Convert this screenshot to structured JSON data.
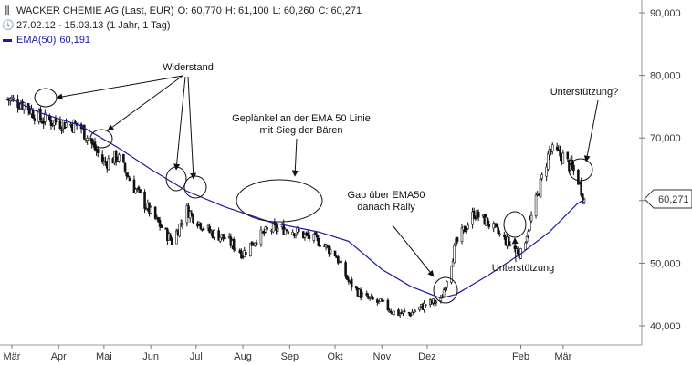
{
  "legend": {
    "instrument": "WACKER CHEMIE AG (Last, EUR)",
    "open": "O: 60,770",
    "high": "H: 61,100",
    "low": "L: 60,260",
    "close": "C: 60,271",
    "period": "27.02.12 - 15.03.13 (1 Jahr, 1 Tag)",
    "ema_label": "EMA(50)",
    "ema_value": "60,191"
  },
  "colors": {
    "ema": "#1a1aa6",
    "candle": "#111111",
    "axis": "#999999"
  },
  "chart_data": {
    "type": "line",
    "ylim": [
      38000,
      91000
    ],
    "yticks": [
      "40,000",
      "50,000",
      "60,000",
      "70,000",
      "80,000",
      "90,000"
    ],
    "xticks": [
      "Mär",
      "Apr",
      "Mai",
      "Jun",
      "Jul",
      "Aug",
      "Sep",
      "Okt",
      "Nov",
      "Dez",
      "Feb",
      "Mär"
    ],
    "last_price_label": "60,271",
    "series": [
      {
        "name": "WACKER CHEMIE AG",
        "style": "candlestick",
        "x": [
          "27.02.12",
          "09.03.12",
          "20.03.12",
          "01.04.12",
          "15.04.12",
          "01.05.12",
          "10.05.12",
          "20.05.12",
          "01.06.12",
          "15.06.12",
          "25.06.12",
          "01.07.12",
          "10.07.12",
          "20.07.12",
          "01.08.12",
          "10.08.12",
          "20.08.12",
          "01.09.12",
          "10.09.12",
          "20.09.12",
          "01.10.12",
          "10.10.12",
          "20.10.12",
          "01.11.12",
          "10.11.12",
          "20.11.12",
          "01.12.12",
          "10.12.12",
          "20.12.12",
          "01.01.13",
          "10.01.13",
          "20.01.13",
          "01.02.13",
          "10.02.13",
          "20.02.13",
          "01.03.13",
          "10.03.13",
          "15.03.13"
        ],
        "y": [
          76200,
          75500,
          73000,
          72500,
          72000,
          66000,
          67000,
          62500,
          58000,
          53500,
          58500,
          57000,
          55000,
          54000,
          51500,
          54000,
          55500,
          55500,
          54500,
          53500,
          51500,
          47000,
          44500,
          43500,
          42000,
          42000,
          43500,
          44000,
          53000,
          58000,
          56500,
          54000,
          51500,
          59000,
          68000,
          67000,
          64000,
          60271
        ]
      },
      {
        "name": "EMA(50)",
        "x": [
          "27.02.12",
          "20.03.12",
          "15.04.12",
          "10.05.12",
          "01.06.12",
          "25.06.12",
          "20.07.12",
          "20.08.12",
          "20.09.12",
          "10.10.12",
          "01.11.12",
          "20.11.12",
          "10.12.12",
          "20.12.12",
          "10.01.13",
          "01.02.13",
          "20.02.13",
          "10.03.13",
          "15.03.13"
        ],
        "y": [
          76500,
          74000,
          72000,
          68500,
          65000,
          61500,
          59000,
          56500,
          55000,
          53500,
          49000,
          46300,
          44400,
          45000,
          48000,
          51500,
          55000,
          59400,
          60191
        ]
      }
    ],
    "annotations": [
      "Widerstand",
      "Geplänkel an der EMA 50 Linie\nmit Sieg der Bären",
      "Gap über EMA50\ndanach Rally",
      "Unterstützung",
      "Unterstützung?"
    ]
  }
}
